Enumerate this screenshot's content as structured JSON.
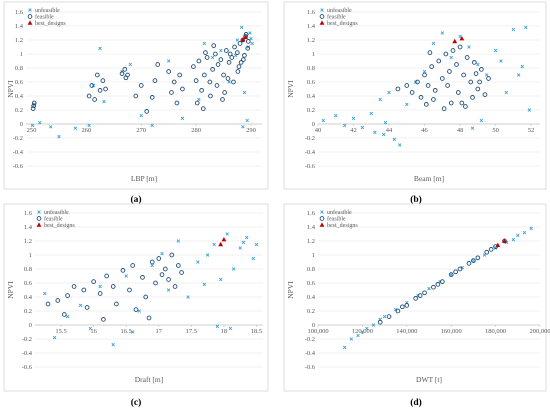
{
  "colors": {
    "unfeasible": "#3fa4dc",
    "feasible": "#1f4e79",
    "best": "#c00000"
  },
  "legend_labels": [
    "unfeasible",
    "feasible",
    "best_designs"
  ],
  "chart_data": [
    {
      "type": "scatter",
      "caption": "(a)",
      "xlabel": "LBP [m]",
      "ylabel": "NPVI",
      "xlim": [
        249,
        292
      ],
      "ylim": [
        -0.6,
        1.6
      ],
      "xticks": [
        "250",
        "260",
        "270",
        "280",
        "290"
      ],
      "xtick_values": [
        250,
        260,
        270,
        280,
        290
      ],
      "yticks": [
        "-0.6",
        "-0.4",
        "-0.2",
        "0",
        "0.2",
        "0.4",
        "0.6",
        "0.8",
        "1",
        "1.2",
        "1.4",
        "1.6"
      ],
      "legend": "top-left",
      "grid": true,
      "series": [
        {
          "name": "unfeasible",
          "x": [
            250.5,
            250.2,
            251.5,
            253.5,
            255,
            258,
            260.5,
            261.3,
            262.5,
            263.2,
            266.5,
            268,
            270,
            272,
            275,
            277.5,
            280.5,
            281.5,
            283,
            284.5,
            286,
            287.5,
            288.3,
            289,
            289.5,
            289.8,
            290,
            288.8,
            287.2,
            290.2,
            289.3,
            288.5
          ],
          "y": [
            0.28,
            -0.02,
            0.02,
            -0.04,
            -0.18,
            -0.06,
            -0.02,
            0.55,
            1.08,
            0.32,
            0.75,
            0.85,
            0.12,
            -0.02,
            0.9,
            0.08,
            0.35,
            1.15,
            0.95,
            1.05,
            0.6,
            1.2,
            1.38,
            1.25,
            1.1,
            1.3,
            1.22,
            0.45,
            0.98,
            1.15,
            0.05,
            -0.04
          ]
        },
        {
          "name": "feasible",
          "x": [
            250.3,
            250.4,
            250.5,
            260.5,
            261,
            261.5,
            262,
            262.5,
            263,
            263.5,
            266.5,
            267,
            267.2,
            267.5,
            269,
            270,
            271,
            272,
            272.5,
            273,
            275,
            275.5,
            276,
            276.5,
            277,
            277.5,
            279.5,
            280,
            280.5,
            281,
            281.5,
            282,
            282.5,
            283,
            283.5,
            284,
            284.5,
            285,
            285.5,
            286,
            286.5,
            287,
            287.5,
            288,
            288.5,
            289,
            289.5,
            280.2,
            281.3,
            282.6,
            283.8,
            285.2,
            286.8,
            287.6,
            288.2,
            288.8,
            289.4,
            284.8,
            285.8,
            287.8,
            288.6,
            281.7,
            283.2,
            286.2,
            289.1
          ],
          "y": [
            0.22,
            0.26,
            0.3,
            0.4,
            0.55,
            0.35,
            0.7,
            0.48,
            0.62,
            0.5,
            0.72,
            0.78,
            0.66,
            0.7,
            0.4,
            0.55,
            0.18,
            0.38,
            0.62,
            0.85,
            0.75,
            0.45,
            0.6,
            0.3,
            0.7,
            0.5,
            0.82,
            0.62,
            0.9,
            0.48,
            0.7,
            0.95,
            0.6,
            0.78,
            1.0,
            0.85,
            0.92,
            0.7,
            1.05,
            0.88,
            0.95,
            1.1,
            1.02,
            1.15,
            1.2,
            1.25,
            1.18,
            0.3,
            0.22,
            0.4,
            0.55,
            0.45,
            0.6,
            0.75,
            0.88,
            0.98,
            1.08,
            0.35,
            0.65,
            0.82,
            0.92,
            1.02,
            1.12,
            1.0,
            1.28
          ]
        },
        {
          "name": "best_designs",
          "x": [
            288.5,
            289
          ],
          "y": [
            1.2,
            1.24
          ]
        }
      ]
    },
    {
      "type": "scatter",
      "caption": "(b)",
      "xlabel": "Beam [m]",
      "ylabel": "NPVI",
      "xlim": [
        40,
        52.5
      ],
      "ylim": [
        -0.6,
        1.6
      ],
      "xticks": [
        "40",
        "42",
        "44",
        "46",
        "48",
        "50",
        "52"
      ],
      "xtick_values": [
        40,
        42,
        44,
        46,
        48,
        50,
        52
      ],
      "yticks": [
        "-0.6",
        "-0.4",
        "-0.2",
        "0",
        "0.2",
        "0.4",
        "0.6",
        "0.8",
        "1",
        "1.2",
        "1.4",
        "1.6"
      ],
      "legend": "top-left",
      "grid": true,
      "series": [
        {
          "name": "unfeasible",
          "x": [
            40.3,
            41,
            41.5,
            42,
            42.5,
            43,
            43.2,
            43.5,
            43.8,
            44,
            44.3,
            44.6,
            45,
            45.5,
            46,
            46.5,
            47,
            47.5,
            48,
            48.5,
            49,
            49.5,
            50,
            50.3,
            50.6,
            51,
            51.3,
            51.5,
            51.7,
            51.9,
            49.2,
            48.7,
            43.7
          ],
          "y": [
            0.05,
            0.12,
            -0.02,
            0.08,
            -0.05,
            0.15,
            -0.12,
            0.35,
            0.02,
            0.45,
            -0.22,
            -0.3,
            0.28,
            0.6,
            0.75,
            1.15,
            1.3,
            0.95,
            1.25,
            1.1,
            0.85,
            0.7,
            1.05,
            0.9,
            0.45,
            1.35,
            0.7,
            0.82,
            1.38,
            0.2,
            0.05,
            -0.06,
            -0.15
          ]
        },
        {
          "name": "feasible",
          "x": [
            44.5,
            45,
            45.3,
            45.6,
            45.8,
            46,
            46.2,
            46.4,
            46.6,
            46.8,
            47,
            47.2,
            47.4,
            47.6,
            47.8,
            48,
            48.2,
            48.4,
            48.6,
            48.8,
            49,
            49.2,
            49.4,
            49.6,
            46.1,
            46.5,
            47.1,
            47.5,
            47.9,
            48.3,
            48.7,
            49.1,
            46.3,
            47.3,
            48.1,
            48.9
          ],
          "y": [
            0.5,
            0.55,
            0.45,
            0.6,
            0.38,
            0.7,
            0.55,
            0.82,
            0.48,
            0.9,
            0.65,
            1.0,
            0.75,
            1.05,
            0.85,
            1.1,
            0.7,
            0.95,
            0.6,
            0.88,
            0.5,
            0.78,
            0.42,
            0.65,
            0.28,
            0.35,
            0.22,
            0.3,
            0.45,
            0.25,
            0.38,
            0.6,
            1.02,
            0.55,
            0.3,
            0.72
          ]
        },
        {
          "name": "best_designs",
          "x": [
            47.7,
            48.1
          ],
          "y": [
            1.18,
            1.22
          ]
        }
      ]
    },
    {
      "type": "scatter",
      "caption": "(c)",
      "xlabel": "Draft [m]",
      "ylabel": "NPVI",
      "xlim": [
        15.1,
        18.6
      ],
      "ylim": [
        -0.6,
        1.6
      ],
      "xticks": [
        "15.5",
        "16",
        "16.5",
        "17",
        "17.5",
        "18",
        "18.5"
      ],
      "xtick_values": [
        15.5,
        16,
        16.5,
        17,
        17.5,
        18,
        18.5
      ],
      "yticks": [
        "-0.6",
        "-0.4",
        "-0.2",
        "0",
        "0.2",
        "0.4",
        "0.6",
        "0.8",
        "1",
        "1.2",
        "1.4",
        "1.6"
      ],
      "legend": "top-left",
      "grid": true,
      "series": [
        {
          "name": "unfeasible",
          "x": [
            15.25,
            15.4,
            15.6,
            15.8,
            15.95,
            16.1,
            16.3,
            16.5,
            16.7,
            16.9,
            17.05,
            17.15,
            17.3,
            17.45,
            17.6,
            17.75,
            17.85,
            17.95,
            18.05,
            18.15,
            18.25,
            18.35,
            18.45,
            18.5,
            17.9,
            18.1,
            18.3,
            16.6,
            17.7
          ],
          "y": [
            0.45,
            -0.18,
            0.12,
            0.28,
            -0.05,
            0.55,
            -0.28,
            0.7,
            0.2,
            0.85,
            1.02,
            0.5,
            1.2,
            0.4,
            0.9,
            1.0,
            1.15,
            0.65,
            1.3,
            0.8,
            1.1,
            1.25,
            0.95,
            1.15,
            -0.02,
            -0.05,
            1.18,
            -0.1,
            0.58
          ]
        },
        {
          "name": "feasible",
          "x": [
            15.3,
            15.45,
            15.6,
            15.7,
            15.85,
            16.0,
            16.1,
            16.2,
            16.3,
            16.45,
            16.6,
            16.75,
            16.9,
            17.0,
            17.1,
            17.2,
            17.3,
            15.55,
            15.9,
            16.15,
            16.35,
            16.55,
            16.8,
            16.95,
            17.05,
            17.15,
            17.25,
            16.65,
            16.85,
            17.35
          ],
          "y": [
            0.3,
            0.35,
            0.42,
            0.55,
            0.5,
            0.62,
            0.45,
            0.7,
            0.55,
            0.78,
            0.85,
            0.68,
            0.9,
            0.95,
            0.8,
            1.0,
            0.85,
            0.15,
            0.25,
            0.08,
            0.3,
            0.5,
            0.4,
            0.6,
            0.72,
            0.65,
            0.55,
            0.22,
            0.1,
            0.75
          ]
        },
        {
          "name": "best_designs",
          "x": [
            17.95,
            18.0
          ],
          "y": [
            1.15,
            1.22
          ]
        }
      ]
    },
    {
      "type": "scatter",
      "caption": "(d)",
      "xlabel": "DWT [t]",
      "ylabel": "NPVI",
      "xlim": [
        100000,
        200000
      ],
      "ylim": [
        -0.6,
        1.6
      ],
      "xticks": [
        "100,000",
        "120,000",
        "140,000",
        "160,000",
        "180,000",
        "200,000"
      ],
      "xtick_values": [
        100000,
        120000,
        140000,
        160000,
        180000,
        200000
      ],
      "yticks": [
        "-0.6",
        "-0.4",
        "-0.2",
        "0",
        "0.2",
        "0.4",
        "0.6",
        "0.8",
        "1",
        "1.2",
        "1.4",
        "1.6"
      ],
      "legend": "top-left",
      "grid": true,
      "series": [
        {
          "name": "unfeasible",
          "x": [
            112000,
            115000,
            118000,
            120000,
            122000,
            125000,
            128000,
            130000,
            135000,
            140000,
            145000,
            150000,
            155000,
            160000,
            165000,
            170000,
            175000,
            180000,
            185000,
            188000,
            190000,
            193000,
            196000
          ],
          "y": [
            -0.32,
            -0.2,
            -0.15,
            -0.1,
            -0.05,
            0.0,
            0.08,
            0.12,
            0.22,
            0.32,
            0.42,
            0.52,
            0.62,
            0.72,
            0.82,
            0.92,
            1.0,
            1.1,
            1.18,
            1.22,
            1.28,
            1.32,
            1.38
          ]
        },
        {
          "name": "feasible",
          "x": [
            128000,
            132000,
            136000,
            140000,
            144000,
            148000,
            152000,
            156000,
            160000,
            164000,
            168000,
            172000,
            176000,
            180000,
            184000,
            138000,
            146000,
            154000,
            162000,
            170000,
            178000
          ],
          "y": [
            0.04,
            0.12,
            0.2,
            0.28,
            0.38,
            0.46,
            0.54,
            0.62,
            0.72,
            0.8,
            0.88,
            0.96,
            1.04,
            1.12,
            1.2,
            0.26,
            0.42,
            0.58,
            0.76,
            0.92,
            1.08
          ]
        },
        {
          "name": "best_designs",
          "x": [
            181000,
            184000
          ],
          "y": [
            1.14,
            1.2
          ]
        }
      ]
    }
  ]
}
